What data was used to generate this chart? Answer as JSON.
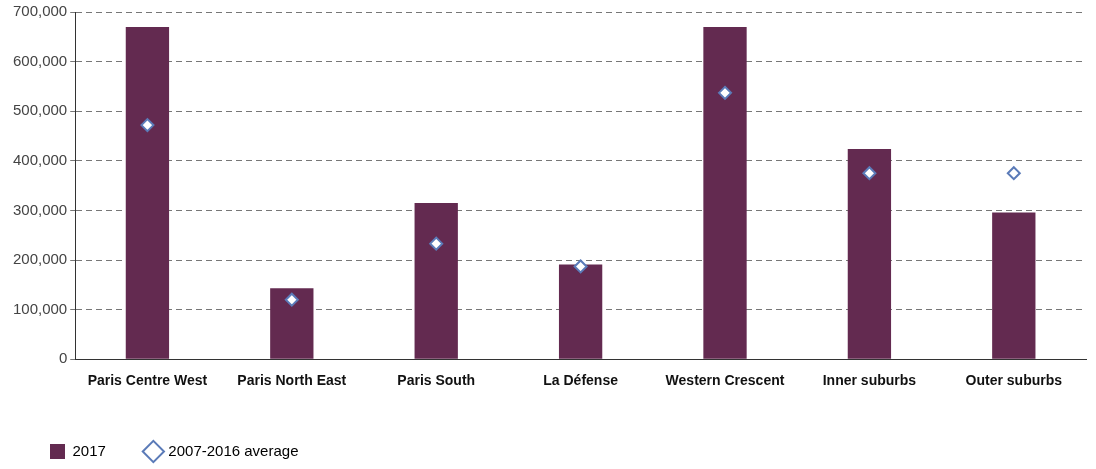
{
  "chart_data": {
    "type": "bar",
    "categories": [
      "Paris Centre West",
      "Paris North East",
      "Paris South",
      "La Défense",
      "Western Crescent",
      "Inner suburbs",
      "Outer suburbs"
    ],
    "series": [
      {
        "name": "2017",
        "color": "#632a50",
        "values": [
          670000,
          143000,
          315000,
          191000,
          670000,
          424000,
          296000
        ]
      },
      {
        "name": "2007-2016 average",
        "type": "scatter",
        "color": "#5b7bb8",
        "values": [
          472000,
          120000,
          233000,
          187000,
          537000,
          375000,
          375000
        ]
      }
    ],
    "ylim": [
      0,
      700000
    ],
    "yticks": [
      {
        "value": 0,
        "label": "0"
      },
      {
        "value": 100000,
        "label": "100,000"
      },
      {
        "value": 200000,
        "label": "200,000"
      },
      {
        "value": 300000,
        "label": "300,000"
      },
      {
        "value": 400000,
        "label": "400,000"
      },
      {
        "value": 500000,
        "label": "500,000"
      },
      {
        "value": 600000,
        "label": "600,000"
      },
      {
        "value": 700000,
        "label": "700,000"
      }
    ],
    "grid": "y",
    "legend": "bottom left",
    "marker": "diamond"
  }
}
